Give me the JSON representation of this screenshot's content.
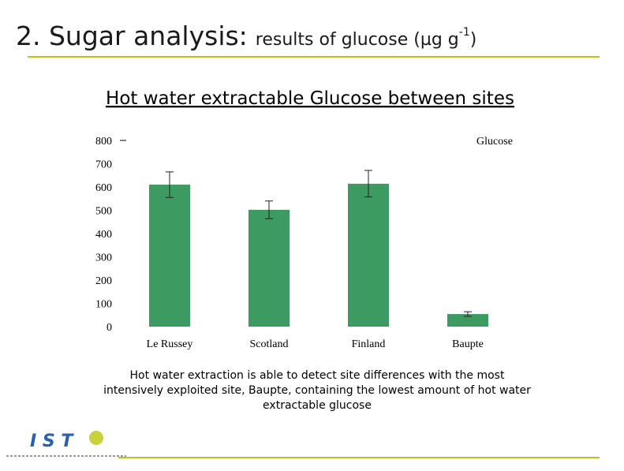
{
  "header": {
    "title_main": "2. Sugar analysis:",
    "title_rest": "results of glucose (µg g",
    "title_sup": "-1",
    "title_end": ")",
    "subtitle": "Hot water extractable Glucose between sites"
  },
  "chart_data": {
    "type": "bar",
    "categories": [
      "Le Russey",
      "Scotland",
      "Finland",
      "Baupte"
    ],
    "series": [
      {
        "name": "Glucose",
        "color": "#3d9a60",
        "values": [
          610,
          502,
          614,
          54
        ],
        "errors": [
          55,
          38,
          57,
          10
        ]
      }
    ],
    "ylim": [
      0,
      800
    ],
    "yticks": [
      0,
      100,
      200,
      300,
      400,
      500,
      600,
      700,
      800
    ],
    "grid": false
  },
  "caption": {
    "lines": [
      "Hot water extraction is able to detect site differences with the most",
      "intensively exploited site, Baupte, containing the lowest amount of hot water",
      "extractable glucose"
    ]
  },
  "footer": {
    "logo": "I S T"
  }
}
